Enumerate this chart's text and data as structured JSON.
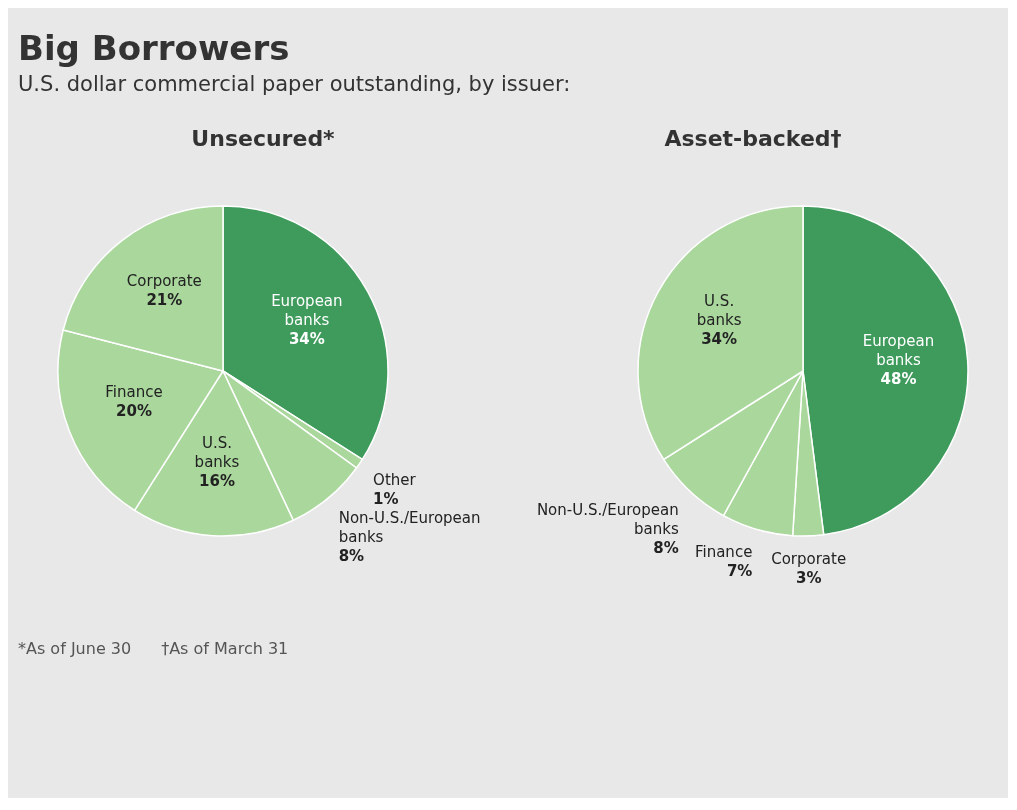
{
  "chart_data": [
    {
      "type": "other",
      "title": "Big Borrowers",
      "subtitle": "U.S. dollar commercial paper outstanding, by issuer:",
      "annotations": [
        "*As of June 30",
        "†As of March 31"
      ]
    },
    {
      "type": "pie",
      "title": "Unsecured*",
      "categories": [
        "European banks",
        "Other",
        "Non-U.S./European banks",
        "U.S. banks",
        "Finance",
        "Corporate"
      ],
      "values": [
        34,
        1,
        8,
        16,
        20,
        21
      ],
      "value_labels": [
        "34%",
        "1%",
        "8%",
        "16%",
        "20%",
        "21%"
      ],
      "colors": [
        "#3f9b5c",
        "#a9d79c",
        "#a9d79c",
        "#a9d79c",
        "#a9d79c",
        "#a9d79c"
      ]
    },
    {
      "type": "pie",
      "title": "Asset-backed†",
      "categories": [
        "European banks",
        "Corporate",
        "Finance",
        "Non-U.S./European banks",
        "U.S. banks"
      ],
      "values": [
        48,
        3,
        7,
        8,
        34
      ],
      "value_labels": [
        "48%",
        "3%",
        "7%",
        "8%",
        "34%"
      ],
      "colors": [
        "#3f9b5c",
        "#a9d79c",
        "#a9d79c",
        "#a9d79c",
        "#a9d79c"
      ]
    }
  ]
}
